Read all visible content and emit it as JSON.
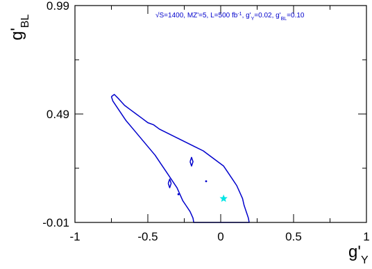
{
  "chart_data": {
    "type": "line",
    "title": "",
    "annotation": {
      "sqrt_symbol": "√",
      "text_a": "S=1400, MZ'=5, L=500 fb",
      "text_a_sup": "-1",
      "text_b": ", g'",
      "text_b_sub": "Y",
      "text_c": "=0.02, g'",
      "text_c_sub": "BL",
      "text_d": "=0.10"
    },
    "xlabel": {
      "main": "g'",
      "sub": "Y"
    },
    "ylabel": {
      "main": "g'",
      "sub": "BL"
    },
    "xlim": [
      -1,
      1
    ],
    "ylim": [
      -0.01,
      0.99
    ],
    "x_ticks": [
      {
        "value": -1,
        "label": "-1"
      },
      {
        "value": -0.5,
        "label": "-0.5"
      },
      {
        "value": 0,
        "label": "0"
      },
      {
        "value": 0.5,
        "label": "0.5"
      },
      {
        "value": 1,
        "label": "1"
      }
    ],
    "y_ticks": [
      {
        "value": -0.01,
        "label": "-0.01"
      },
      {
        "value": 0.49,
        "label": "0.49"
      },
      {
        "value": 0.99,
        "label": "0.99"
      }
    ],
    "grid": false,
    "legend": "none",
    "series": [
      {
        "kind": "contour",
        "color": "#0000cc",
        "points": [
          [
            -0.75,
            0.57
          ],
          [
            -0.73,
            0.58
          ],
          [
            -0.7,
            0.56
          ],
          [
            -0.66,
            0.53
          ],
          [
            -0.62,
            0.51
          ],
          [
            -0.58,
            0.49
          ],
          [
            -0.54,
            0.47
          ],
          [
            -0.5,
            0.45
          ],
          [
            -0.46,
            0.44
          ],
          [
            -0.42,
            0.42
          ],
          [
            -0.36,
            0.4
          ],
          [
            -0.3,
            0.38
          ],
          [
            -0.24,
            0.36
          ],
          [
            -0.18,
            0.34
          ],
          [
            -0.12,
            0.32
          ],
          [
            -0.06,
            0.29
          ],
          [
            -0.02,
            0.27
          ],
          [
            0.02,
            0.25
          ],
          [
            0.05,
            0.22
          ],
          [
            0.08,
            0.19
          ],
          [
            0.11,
            0.16
          ],
          [
            0.13,
            0.13
          ],
          [
            0.15,
            0.1
          ],
          [
            0.16,
            0.07
          ],
          [
            0.17,
            0.05
          ],
          [
            0.18,
            0.03
          ],
          [
            0.19,
            0.01
          ],
          [
            0.195,
            -0.01
          ],
          [
            -0.185,
            -0.01
          ],
          [
            -0.19,
            0.01
          ],
          [
            -0.21,
            0.04
          ],
          [
            -0.24,
            0.07
          ],
          [
            -0.26,
            0.09
          ],
          [
            -0.28,
            0.12
          ],
          [
            -0.3,
            0.15
          ],
          [
            -0.33,
            0.18
          ],
          [
            -0.37,
            0.22
          ],
          [
            -0.41,
            0.26
          ],
          [
            -0.45,
            0.3
          ],
          [
            -0.5,
            0.34
          ],
          [
            -0.55,
            0.38
          ],
          [
            -0.6,
            0.42
          ],
          [
            -0.65,
            0.46
          ],
          [
            -0.7,
            0.51
          ],
          [
            -0.74,
            0.55
          ],
          [
            -0.75,
            0.57
          ]
        ]
      },
      {
        "kind": "contour",
        "color": "#0000cc",
        "points": [
          [
            -0.36,
            0.17
          ],
          [
            -0.35,
            0.19
          ],
          [
            -0.34,
            0.17
          ],
          [
            -0.35,
            0.15
          ],
          [
            -0.36,
            0.17
          ]
        ]
      },
      {
        "kind": "contour",
        "color": "#0000cc",
        "points": [
          [
            -0.21,
            0.27
          ],
          [
            -0.2,
            0.29
          ],
          [
            -0.19,
            0.27
          ],
          [
            -0.2,
            0.25
          ],
          [
            -0.21,
            0.27
          ]
        ]
      },
      {
        "kind": "dot",
        "color": "#0000cc",
        "points": [
          [
            -0.29,
            0.12
          ],
          [
            -0.1,
            0.18
          ]
        ]
      },
      {
        "kind": "marker",
        "marker": "star",
        "color": "#00e5e5",
        "points": [
          [
            0.02,
            0.1
          ]
        ]
      }
    ]
  }
}
